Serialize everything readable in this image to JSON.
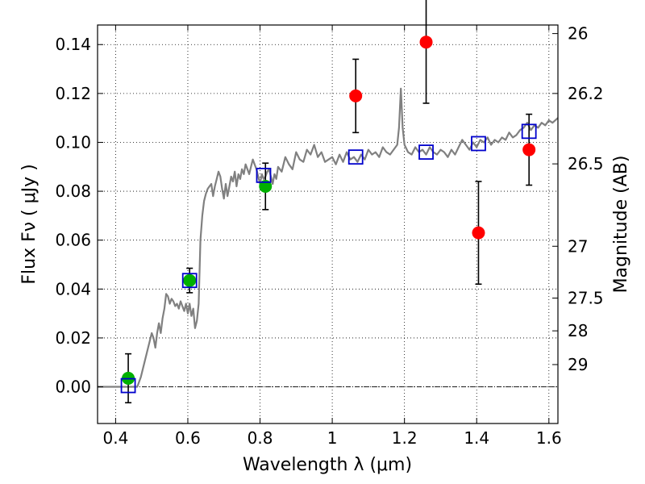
{
  "chart_data": {
    "type": "scatter",
    "xlabel": "Wavelength  λ (μm)",
    "ylabel": "Flux  Fν  ( μJy )",
    "y2label": "Magnitude (AB)",
    "xlim": [
      0.35,
      1.625
    ],
    "ylim": [
      -0.015,
      0.148
    ],
    "grid": true,
    "x_ticks": [
      0.4,
      0.6,
      0.8,
      1.0,
      1.2,
      1.4,
      1.6
    ],
    "x_tick_labels": [
      "0.4",
      "0.6",
      "0.8",
      "1",
      "1.2",
      "1.4",
      "1.6"
    ],
    "y_ticks": [
      0.0,
      0.02,
      0.04,
      0.06,
      0.08,
      0.1,
      0.12,
      0.14
    ],
    "y_tick_labels": [
      "0.00",
      "0.02",
      "0.04",
      "0.06",
      "0.08",
      "0.10",
      "0.12",
      "0.14"
    ],
    "y2_ticks": [
      {
        "flux": 0.1445,
        "label": "26"
      },
      {
        "flux": 0.12,
        "label": "26.2"
      },
      {
        "flux": 0.0912,
        "label": "26.5"
      },
      {
        "flux": 0.0575,
        "label": "27"
      },
      {
        "flux": 0.0363,
        "label": "27.5"
      },
      {
        "flux": 0.0229,
        "label": "28"
      },
      {
        "flux": 0.0091,
        "label": "29"
      }
    ],
    "zero_line": 0.0,
    "series": [
      {
        "kind": "model-spectrum",
        "color": "#808080",
        "x": [
          0.35,
          0.44,
          0.455,
          0.46,
          0.47,
          0.48,
          0.49,
          0.5,
          0.505,
          0.51,
          0.515,
          0.52,
          0.525,
          0.53,
          0.535,
          0.54,
          0.545,
          0.55,
          0.555,
          0.56,
          0.565,
          0.57,
          0.575,
          0.58,
          0.585,
          0.59,
          0.595,
          0.6,
          0.605,
          0.61,
          0.615,
          0.62,
          0.625,
          0.63,
          0.635,
          0.64,
          0.645,
          0.65,
          0.655,
          0.66,
          0.665,
          0.67,
          0.675,
          0.68,
          0.685,
          0.69,
          0.695,
          0.7,
          0.705,
          0.71,
          0.715,
          0.72,
          0.725,
          0.73,
          0.735,
          0.74,
          0.745,
          0.75,
          0.755,
          0.76,
          0.765,
          0.77,
          0.775,
          0.78,
          0.785,
          0.79,
          0.8,
          0.805,
          0.81,
          0.815,
          0.82,
          0.825,
          0.83,
          0.835,
          0.84,
          0.845,
          0.85,
          0.86,
          0.87,
          0.88,
          0.89,
          0.9,
          0.91,
          0.92,
          0.93,
          0.94,
          0.95,
          0.96,
          0.97,
          0.98,
          0.99,
          1.0,
          1.01,
          1.02,
          1.03,
          1.04,
          1.05,
          1.06,
          1.07,
          1.08,
          1.09,
          1.1,
          1.11,
          1.12,
          1.13,
          1.14,
          1.15,
          1.16,
          1.17,
          1.18,
          1.185,
          1.19,
          1.195,
          1.2,
          1.21,
          1.22,
          1.23,
          1.24,
          1.25,
          1.26,
          1.27,
          1.28,
          1.29,
          1.3,
          1.31,
          1.32,
          1.33,
          1.34,
          1.35,
          1.36,
          1.37,
          1.38,
          1.39,
          1.4,
          1.41,
          1.42,
          1.43,
          1.44,
          1.45,
          1.46,
          1.47,
          1.48,
          1.49,
          1.5,
          1.51,
          1.52,
          1.53,
          1.54,
          1.55,
          1.56,
          1.57,
          1.58,
          1.59,
          1.6,
          1.61,
          1.625
        ],
        "y": [
          0.0,
          0.0,
          0.0,
          0.0,
          0.004,
          0.01,
          0.016,
          0.022,
          0.02,
          0.016,
          0.022,
          0.026,
          0.022,
          0.028,
          0.032,
          0.038,
          0.037,
          0.034,
          0.036,
          0.035,
          0.033,
          0.034,
          0.032,
          0.035,
          0.033,
          0.031,
          0.034,
          0.03,
          0.034,
          0.029,
          0.032,
          0.024,
          0.027,
          0.034,
          0.06,
          0.07,
          0.076,
          0.079,
          0.081,
          0.082,
          0.083,
          0.078,
          0.082,
          0.085,
          0.088,
          0.086,
          0.081,
          0.077,
          0.083,
          0.078,
          0.082,
          0.086,
          0.084,
          0.088,
          0.082,
          0.087,
          0.085,
          0.089,
          0.087,
          0.091,
          0.089,
          0.087,
          0.09,
          0.093,
          0.091,
          0.089,
          0.083,
          0.087,
          0.085,
          0.086,
          0.088,
          0.089,
          0.086,
          0.083,
          0.087,
          0.085,
          0.09,
          0.088,
          0.094,
          0.091,
          0.089,
          0.096,
          0.093,
          0.092,
          0.097,
          0.095,
          0.099,
          0.094,
          0.096,
          0.092,
          0.093,
          0.094,
          0.091,
          0.095,
          0.092,
          0.096,
          0.093,
          0.094,
          0.092,
          0.095,
          0.093,
          0.097,
          0.095,
          0.096,
          0.094,
          0.098,
          0.096,
          0.095,
          0.097,
          0.099,
          0.106,
          0.122,
          0.106,
          0.099,
          0.096,
          0.095,
          0.098,
          0.096,
          0.097,
          0.095,
          0.098,
          0.096,
          0.095,
          0.097,
          0.096,
          0.094,
          0.097,
          0.095,
          0.098,
          0.101,
          0.099,
          0.097,
          0.1,
          0.098,
          0.101,
          0.1,
          0.102,
          0.099,
          0.101,
          0.1,
          0.102,
          0.101,
          0.104,
          0.102,
          0.103,
          0.105,
          0.106,
          0.108,
          0.105,
          0.107,
          0.106,
          0.108,
          0.107,
          0.109,
          0.108,
          0.11
        ]
      },
      {
        "kind": "observed-detections",
        "color": "#00b000",
        "marker": "filled-circle",
        "x": [
          0.435,
          0.605,
          0.815
        ],
        "y": [
          0.0035,
          0.0435,
          0.082
        ],
        "yerr": [
          0.01,
          0.005,
          0.0095
        ]
      },
      {
        "kind": "observed-nondetections",
        "color": "#ff0000",
        "marker": "filled-circle",
        "x": [
          1.065,
          1.26,
          1.405,
          1.545
        ],
        "y": [
          0.119,
          0.141,
          0.063,
          0.097
        ],
        "yerr": [
          0.015,
          0.025,
          0.021,
          0.0145
        ]
      },
      {
        "kind": "model-photometry",
        "color": "#0000cc",
        "marker": "open-square",
        "x": [
          0.435,
          0.605,
          0.81,
          1.065,
          1.26,
          1.405,
          1.545
        ],
        "y": [
          0.0005,
          0.0435,
          0.0865,
          0.094,
          0.096,
          0.0995,
          0.1045
        ]
      }
    ]
  }
}
